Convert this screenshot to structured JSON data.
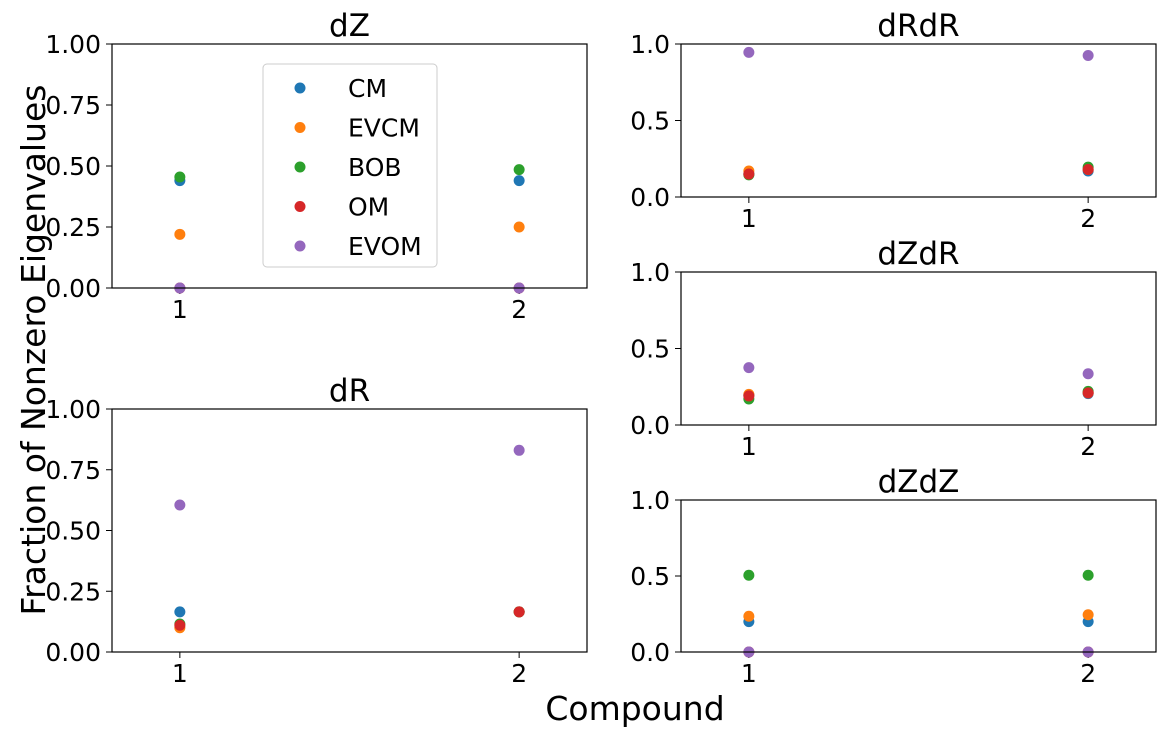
{
  "figure": {
    "ylabel": "Fraction of Nonzero Eigenvalues",
    "xlabel": "Compound"
  },
  "colors": {
    "CM": "#1f77b4",
    "EVCM": "#ff7f0e",
    "BOB": "#2ca02c",
    "OM": "#d62728",
    "EVOM": "#9467bd"
  },
  "legend": {
    "placement": "upper-center of dZ panel",
    "entries": [
      "CM",
      "EVCM",
      "BOB",
      "OM",
      "EVOM"
    ]
  },
  "chart_data": [
    {
      "id": "dZ",
      "type": "scatter",
      "title": "dZ",
      "x": [
        1,
        2
      ],
      "xticks": [
        "1",
        "2"
      ],
      "xlim": [
        0.8,
        2.2
      ],
      "ylim": [
        0,
        1
      ],
      "yticks": [
        "0.00",
        "0.25",
        "0.50",
        "0.75",
        "1.00"
      ],
      "yticks_values": [
        0,
        0.25,
        0.5,
        0.75,
        1.0
      ],
      "series": [
        {
          "name": "CM",
          "values": [
            0.44,
            0.44
          ]
        },
        {
          "name": "EVCM",
          "values": [
            0.22,
            0.25
          ]
        },
        {
          "name": "BOB",
          "values": [
            0.455,
            0.485
          ]
        },
        {
          "name": "OM",
          "values": [
            0.0,
            0.0
          ]
        },
        {
          "name": "EVOM",
          "values": [
            0.0,
            0.0
          ]
        }
      ]
    },
    {
      "id": "dR",
      "type": "scatter",
      "title": "dR",
      "x": [
        1,
        2
      ],
      "xticks": [
        "1",
        "2"
      ],
      "xlim": [
        0.8,
        2.2
      ],
      "ylim": [
        0,
        1
      ],
      "yticks": [
        "0.00",
        "0.25",
        "0.50",
        "0.75",
        "1.00"
      ],
      "yticks_values": [
        0,
        0.25,
        0.5,
        0.75,
        1.0
      ],
      "series": [
        {
          "name": "CM",
          "values": [
            0.165,
            0.165
          ]
        },
        {
          "name": "EVCM",
          "values": [
            0.1,
            0.165
          ]
        },
        {
          "name": "BOB",
          "values": [
            0.115,
            0.165
          ]
        },
        {
          "name": "OM",
          "values": [
            0.11,
            0.165
          ]
        },
        {
          "name": "EVOM",
          "values": [
            0.605,
            0.83
          ]
        }
      ]
    },
    {
      "id": "dRdR",
      "type": "scatter",
      "title": "dRdR",
      "x": [
        1,
        2
      ],
      "xticks": [
        "1",
        "2"
      ],
      "xlim": [
        0.8,
        2.2
      ],
      "ylim": [
        0,
        1
      ],
      "yticks": [
        "0.0",
        "0.5",
        "1.0"
      ],
      "yticks_values": [
        0,
        0.5,
        1.0
      ],
      "series": [
        {
          "name": "CM",
          "values": [
            0.15,
            0.17
          ]
        },
        {
          "name": "EVCM",
          "values": [
            0.17,
            0.18
          ]
        },
        {
          "name": "BOB",
          "values": [
            0.145,
            0.195
          ]
        },
        {
          "name": "OM",
          "values": [
            0.15,
            0.18
          ]
        },
        {
          "name": "EVOM",
          "values": [
            0.945,
            0.925
          ]
        }
      ]
    },
    {
      "id": "dZdR",
      "type": "scatter",
      "title": "dZdR",
      "x": [
        1,
        2
      ],
      "xticks": [
        "1",
        "2"
      ],
      "xlim": [
        0.8,
        2.2
      ],
      "ylim": [
        0,
        1
      ],
      "yticks": [
        "0.0",
        "0.5",
        "1.0"
      ],
      "yticks_values": [
        0,
        0.5,
        1.0
      ],
      "series": [
        {
          "name": "CM",
          "values": [
            0.195,
            0.205
          ]
        },
        {
          "name": "EVCM",
          "values": [
            0.2,
            0.21
          ]
        },
        {
          "name": "BOB",
          "values": [
            0.17,
            0.22
          ]
        },
        {
          "name": "OM",
          "values": [
            0.19,
            0.21
          ]
        },
        {
          "name": "EVOM",
          "values": [
            0.375,
            0.335
          ]
        }
      ]
    },
    {
      "id": "dZdZ",
      "type": "scatter",
      "title": "dZdZ",
      "x": [
        1,
        2
      ],
      "xticks": [
        "1",
        "2"
      ],
      "xlim": [
        0.8,
        2.2
      ],
      "ylim": [
        0,
        1
      ],
      "yticks": [
        "0.0",
        "0.5",
        "1.0"
      ],
      "yticks_values": [
        0,
        0.5,
        1.0
      ],
      "series": [
        {
          "name": "CM",
          "values": [
            0.2,
            0.2
          ]
        },
        {
          "name": "EVCM",
          "values": [
            0.235,
            0.245
          ]
        },
        {
          "name": "BOB",
          "values": [
            0.505,
            0.505
          ]
        },
        {
          "name": "OM",
          "values": [
            0.0,
            0.0
          ]
        },
        {
          "name": "EVOM",
          "values": [
            0.0,
            0.0
          ]
        }
      ]
    }
  ]
}
